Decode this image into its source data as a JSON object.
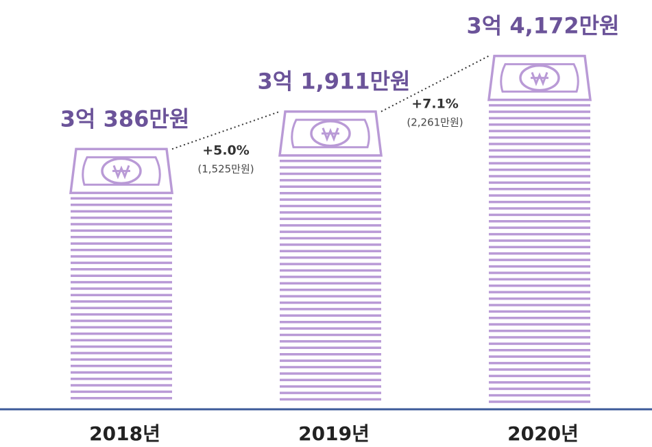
{
  "chart_data": {
    "type": "bar",
    "categories": [
      "2018년",
      "2019년",
      "2020년"
    ],
    "values": [
      30386,
      31911,
      34172
    ],
    "value_labels": [
      "3억 386만원",
      "3억 1,911만원",
      "3억 4,172만원"
    ],
    "color": "#b99ad6",
    "label_color": "#6b5399",
    "ylim": [
      20000,
      36000
    ],
    "annotations": [
      {
        "label": "+5.0%",
        "detail": "(1,525만원)"
      },
      {
        "label": "+7.1%",
        "detail": "(2,261만원)"
      }
    ]
  }
}
